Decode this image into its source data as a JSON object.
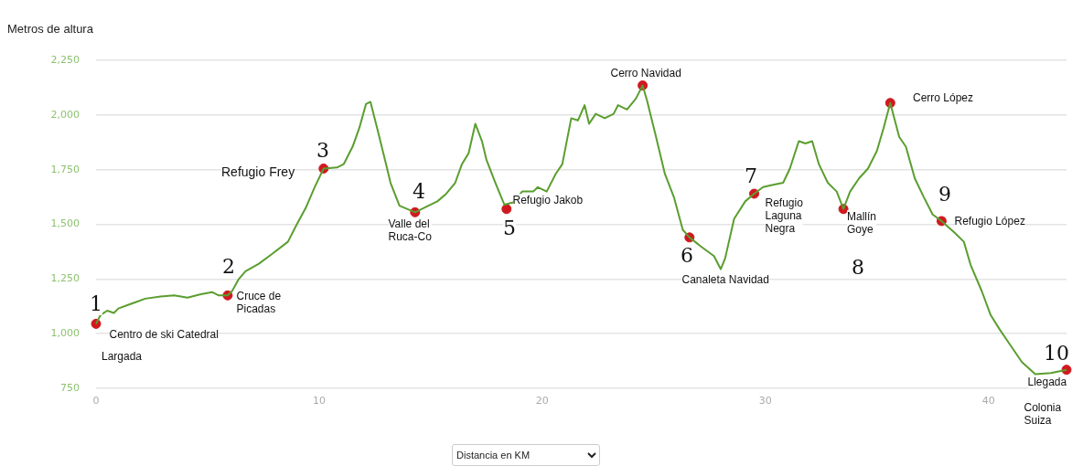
{
  "chart_data": {
    "type": "line",
    "xlabel": "Distancia en KM",
    "ylabel": "Metros de altura",
    "xlim": [
      0,
      43.5
    ],
    "xticks": [
      0,
      10,
      20,
      30,
      40
    ],
    "ylim": [
      750,
      2250
    ],
    "yticks": [
      {
        "value": 750,
        "label": "750"
      },
      {
        "value": 1000,
        "label": "1,000"
      },
      {
        "value": 1250,
        "label": "1,250"
      },
      {
        "value": 1500,
        "label": "1,500"
      },
      {
        "value": 1750,
        "label": "1,750"
      },
      {
        "value": 2000,
        "label": "2,000"
      },
      {
        "value": 2250,
        "label": "2,250"
      }
    ],
    "grid": "y",
    "legend": false,
    "series": [
      {
        "color": "#5a9e2f",
        "marker": "none",
        "x": [
          0.0,
          0.2,
          0.5,
          0.8,
          1.0,
          1.4,
          1.8,
          2.2,
          2.9,
          3.5,
          4.1,
          4.7,
          5.2,
          5.5,
          5.9,
          6.1,
          6.4,
          6.7,
          7.3,
          7.9,
          8.6,
          9.0,
          9.4,
          9.8,
          10.2,
          10.8,
          11.1,
          11.5,
          11.8,
          12.1,
          12.3,
          12.6,
          13.0,
          13.2,
          13.6,
          14.3,
          14.9,
          15.3,
          15.7,
          16.1,
          16.4,
          16.7,
          17.0,
          17.3,
          17.5,
          17.9,
          18.3,
          18.7,
          19.1,
          19.6,
          19.8,
          20.2,
          20.6,
          20.9,
          21.3,
          21.6,
          21.9,
          22.1,
          22.4,
          22.8,
          23.2,
          23.4,
          23.8,
          24.2,
          24.5,
          24.7,
          25.1,
          25.5,
          25.9,
          26.3,
          26.6,
          27.1,
          27.7,
          28.0,
          28.2,
          28.6,
          29.1,
          29.5,
          29.9,
          30.3,
          30.8,
          31.1,
          31.5,
          31.8,
          32.1,
          32.4,
          32.8,
          33.2,
          33.5,
          33.8,
          34.2,
          34.6,
          35.0,
          35.3,
          35.6,
          36.0,
          36.3,
          36.7,
          37.1,
          37.5,
          37.9,
          38.5,
          38.9,
          39.2,
          39.7,
          40.1,
          40.5,
          40.9,
          41.5,
          42.1,
          42.8,
          43.5
        ],
        "values": [
          1045,
          1085,
          1105,
          1095,
          1115,
          1130,
          1145,
          1160,
          1170,
          1175,
          1165,
          1180,
          1190,
          1175,
          1175,
          1195,
          1250,
          1285,
          1320,
          1365,
          1420,
          1500,
          1575,
          1670,
          1755,
          1760,
          1775,
          1855,
          1940,
          2050,
          2060,
          1940,
          1775,
          1690,
          1585,
          1555,
          1585,
          1605,
          1640,
          1690,
          1775,
          1825,
          1960,
          1880,
          1795,
          1690,
          1590,
          1600,
          1650,
          1650,
          1670,
          1650,
          1730,
          1775,
          1985,
          1975,
          2045,
          1960,
          2005,
          1985,
          2005,
          2045,
          2025,
          2075,
          2135,
          2065,
          1900,
          1730,
          1625,
          1475,
          1440,
          1400,
          1355,
          1295,
          1345,
          1525,
          1605,
          1640,
          1670,
          1680,
          1690,
          1755,
          1880,
          1870,
          1880,
          1775,
          1690,
          1650,
          1570,
          1650,
          1710,
          1755,
          1835,
          1940,
          2055,
          1900,
          1855,
          1710,
          1625,
          1545,
          1515,
          1460,
          1420,
          1315,
          1195,
          1085,
          1020,
          960,
          870,
          815,
          820,
          835
        ]
      },
      {
        "type": "scatter",
        "color": "#d0191f",
        "marker": "circle",
        "x": [
          0.0,
          5.9,
          10.2,
          14.3,
          18.4,
          24.5,
          26.6,
          29.5,
          33.5,
          35.6,
          37.9,
          43.5
        ],
        "values": [
          1045,
          1175,
          1755,
          1555,
          1570,
          2135,
          1440,
          1640,
          1570,
          2055,
          1515,
          835
        ]
      }
    ],
    "annotations": [
      "1",
      "Centro de ski Catedral",
      "Largada",
      "2",
      "Cruce de\nPicadas",
      "3",
      "Refugio Frey",
      "4",
      "Valle del\nRuca-Co",
      "5",
      "Refugio Jakob",
      "Cerro Navidad",
      "6",
      "Canaleta Navidad",
      "7",
      "Refugio\nLaguna\nNegra",
      "Mallín\nGoye",
      "8",
      "Cerro López",
      "9",
      "Refugio López",
      "10",
      "Llegada",
      "Colonia\nSuiza"
    ]
  }
}
